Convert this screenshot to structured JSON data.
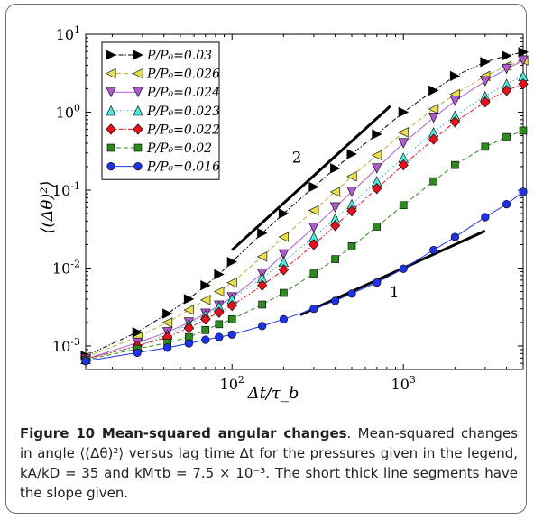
{
  "chart_data": {
    "type": "scatter",
    "xscale": "log",
    "yscale": "log",
    "xlim": [
      14,
      5000
    ],
    "ylim": [
      0.0005,
      10
    ],
    "xlabel": "Δt/τ_b",
    "ylabel": "⟨(Δθ)²⟩",
    "x_tick_labels": [
      {
        "value": 100,
        "base": "10",
        "exp": "2"
      },
      {
        "value": 1000,
        "base": "10",
        "exp": "3"
      }
    ],
    "y_tick_labels": [
      {
        "value": 0.001,
        "base": "10",
        "exp": "-3"
      },
      {
        "value": 0.01,
        "base": "10",
        "exp": "-2"
      },
      {
        "value": 0.1,
        "base": "10",
        "exp": "-1"
      },
      {
        "value": 1,
        "base": "10",
        "exp": "0"
      },
      {
        "value": 10,
        "base": "10",
        "exp": "1"
      }
    ],
    "legend_position": "top-left",
    "series": [
      {
        "name": "P/P₀=0.03",
        "marker": "triangle-right",
        "color": "#000000",
        "line": "dashdot",
        "x": [
          14,
          28,
          42,
          56,
          70,
          84,
          100,
          150,
          200,
          300,
          400,
          500,
          700,
          1000,
          1500,
          2000,
          3000,
          4000,
          5000
        ],
        "y": [
          0.00075,
          0.0015,
          0.0026,
          0.004,
          0.006,
          0.0083,
          0.012,
          0.028,
          0.05,
          0.11,
          0.19,
          0.29,
          0.52,
          1.0,
          1.9,
          2.9,
          4.4,
          5.3,
          5.9
        ]
      },
      {
        "name": "P/P₀=0.026",
        "marker": "triangle-left",
        "color": "#e8e050",
        "line": "dashed",
        "x": [
          14,
          28,
          42,
          56,
          70,
          84,
          100,
          150,
          200,
          300,
          400,
          500,
          700,
          1000,
          1500,
          2000,
          3000,
          4000,
          5000
        ],
        "y": [
          0.00072,
          0.0013,
          0.002,
          0.0029,
          0.0039,
          0.005,
          0.0065,
          0.014,
          0.025,
          0.055,
          0.095,
          0.15,
          0.28,
          0.55,
          1.1,
          1.7,
          2.9,
          3.9,
          4.6
        ]
      },
      {
        "name": "P/P₀=0.024",
        "marker": "triangle-down",
        "color": "#b05ad0",
        "line": "solid",
        "x": [
          14,
          28,
          42,
          56,
          70,
          84,
          100,
          150,
          200,
          300,
          400,
          500,
          700,
          1000,
          1500,
          2000,
          3000,
          4000,
          5000
        ],
        "y": [
          0.00068,
          0.0011,
          0.0015,
          0.002,
          0.0026,
          0.0033,
          0.0042,
          0.0085,
          0.015,
          0.033,
          0.06,
          0.095,
          0.19,
          0.4,
          0.85,
          1.4,
          2.5,
          3.6,
          4.6
        ]
      },
      {
        "name": "P/P₀=0.023",
        "marker": "triangle-up",
        "color": "#50e8e0",
        "line": "dotted",
        "x": [
          14,
          28,
          42,
          56,
          70,
          84,
          100,
          150,
          200,
          300,
          400,
          500,
          700,
          1000,
          1500,
          2000,
          3000,
          4000,
          5000
        ],
        "y": [
          0.00068,
          0.001,
          0.0014,
          0.0019,
          0.0025,
          0.0032,
          0.004,
          0.0075,
          0.012,
          0.025,
          0.043,
          0.066,
          0.13,
          0.26,
          0.55,
          0.9,
          1.6,
          2.3,
          2.9
        ]
      },
      {
        "name": "P/P₀=0.022",
        "marker": "diamond",
        "color": "#e8101c",
        "line": "dashdot",
        "x": [
          14,
          28,
          42,
          56,
          70,
          84,
          100,
          150,
          200,
          300,
          400,
          500,
          700,
          1000,
          1500,
          2000,
          3000,
          4000,
          5000
        ],
        "y": [
          0.00068,
          0.001,
          0.0013,
          0.0017,
          0.0022,
          0.0027,
          0.0033,
          0.006,
          0.0095,
          0.02,
          0.035,
          0.054,
          0.105,
          0.21,
          0.45,
          0.75,
          1.35,
          1.9,
          2.3
        ]
      },
      {
        "name": "P/P₀=0.02",
        "marker": "square",
        "color": "#2e8a1e",
        "line": "dashed",
        "x": [
          14,
          28,
          42,
          56,
          70,
          84,
          100,
          150,
          200,
          300,
          400,
          500,
          700,
          1000,
          1500,
          2000,
          3000,
          4000,
          5000
        ],
        "y": [
          0.00066,
          0.00092,
          0.0011,
          0.0013,
          0.0016,
          0.0019,
          0.0022,
          0.0034,
          0.0048,
          0.0085,
          0.013,
          0.019,
          0.034,
          0.064,
          0.13,
          0.21,
          0.36,
          0.48,
          0.58
        ]
      },
      {
        "name": "P/P₀=0.016",
        "marker": "circle",
        "color": "#1e32e8",
        "line": "solid",
        "x": [
          14,
          28,
          42,
          56,
          70,
          84,
          100,
          150,
          200,
          300,
          400,
          500,
          700,
          1000,
          1500,
          2000,
          3000,
          4000,
          5000
        ],
        "y": [
          0.00064,
          0.00082,
          0.00095,
          0.00108,
          0.0012,
          0.0013,
          0.0014,
          0.0018,
          0.0022,
          0.003,
          0.0038,
          0.0047,
          0.0065,
          0.0098,
          0.017,
          0.025,
          0.045,
          0.066,
          0.095
        ]
      }
    ],
    "reference_lines": [
      {
        "label": "2",
        "slope": 2,
        "x": [
          100,
          840
        ],
        "y": [
          0.017,
          1.2
        ]
      },
      {
        "label": "1",
        "slope": 1,
        "x": [
          250,
          3000
        ],
        "y": [
          0.0025,
          0.03
        ]
      }
    ]
  },
  "caption": {
    "title": "Figure 10 Mean-squared angular changes",
    "text": ". Mean-squared changes in angle ⟨(Δθ)²⟩ versus lag time Δt for the pressures given in the legend, kA/kD = 35 and kMτb = 7.5 × 10⁻³. The short thick line segments have the slope given."
  }
}
